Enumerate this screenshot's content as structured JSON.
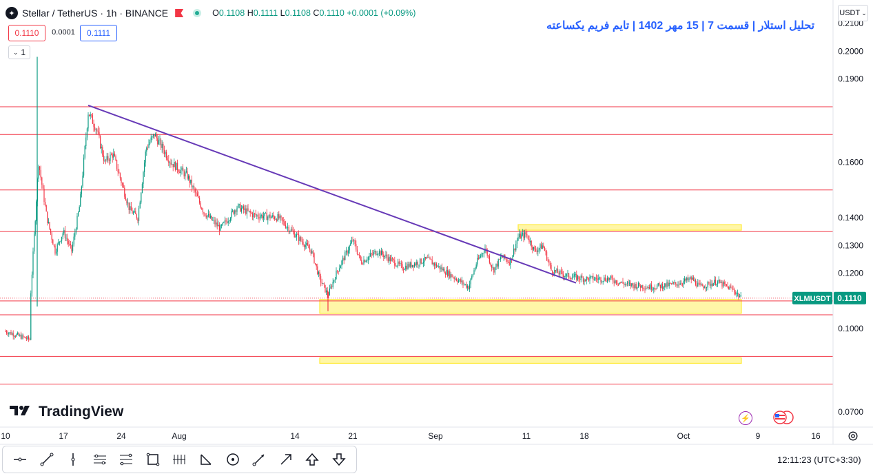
{
  "header": {
    "symbol_icon": "stellar-logo-icon",
    "title": "Stellar / TetherUS · 1h · BINANCE",
    "ohlc": {
      "o_label": "O",
      "o": "0.1108",
      "h_label": "H",
      "h": "0.1111",
      "l_label": "L",
      "l": "0.1108",
      "c_label": "C",
      "c": "0.1110",
      "change": "+0.0001 (+0.09%)"
    },
    "bid": "0.1110",
    "spread": "0.0001",
    "ask": "0.1111",
    "collapse_label": "1",
    "annotation_title": "تحلیل استلار | قسمت 7 | 15 مهر 1402 | تایم فریم یکساعته",
    "currency": "USDT"
  },
  "chart_data": {
    "type": "candlestick",
    "symbol": "XLMUSDT",
    "last_price": "0.1110",
    "ylim": [
      0.0645,
      0.2185
    ],
    "y_ticks": [
      "0.2100",
      "0.2000",
      "0.1900",
      "0.1600",
      "0.1400",
      "0.1300",
      "0.1200",
      "0.1000",
      "0.0700"
    ],
    "x_ticks": [
      "10",
      "17",
      "24",
      "Aug",
      "14",
      "21",
      "Sep",
      "11",
      "18",
      "Oct",
      "9",
      "16"
    ],
    "horizontal_levels": [
      {
        "value": 0.18,
        "label": "0.1800"
      },
      {
        "value": 0.17,
        "label": "0.1700"
      },
      {
        "value": 0.15,
        "label": "0.1500"
      },
      {
        "value": 0.135,
        "label": "0.1350"
      },
      {
        "value": 0.11,
        "label": "0.1100"
      },
      {
        "value": 0.105,
        "label": "0.1050"
      },
      {
        "value": 0.09,
        "label": "0.0900"
      },
      {
        "value": 0.08,
        "label": "0.0800"
      }
    ],
    "zones": [
      {
        "from": 0.1355,
        "to": 0.1375,
        "start": "Sep 10",
        "end": "Oct 7"
      },
      {
        "from": 0.1055,
        "to": 0.1105,
        "start": "Aug 17",
        "end": "Oct 7"
      },
      {
        "from": 0.0875,
        "to": 0.0895,
        "start": "Aug 17",
        "end": "Oct 7"
      }
    ],
    "trendline": {
      "start": {
        "date": "Jul 20",
        "value": 0.1805
      },
      "end": {
        "date": "Sep 17",
        "value": 0.1165
      }
    },
    "colors": {
      "up": "#089981",
      "down": "#f23645",
      "level": "#f23645",
      "zone": "#ffeb3b",
      "trend": "#673ab7",
      "accent": "#2962ff"
    },
    "price_path": [
      [
        "Jul 10",
        0.099
      ],
      [
        "Jul 13",
        0.096
      ],
      [
        "Jul 13",
        0.11
      ],
      [
        "Jul 14",
        0.16
      ],
      [
        "Jul 15",
        0.14
      ],
      [
        "Jul 16",
        0.128
      ],
      [
        "Jul 17",
        0.135
      ],
      [
        "Jul 18",
        0.128
      ],
      [
        "Jul 19",
        0.145
      ],
      [
        "Jul 20",
        0.178
      ],
      [
        "Jul 21",
        0.172
      ],
      [
        "Jul 22",
        0.16
      ],
      [
        "Jul 23",
        0.163
      ],
      [
        "Jul 25",
        0.143
      ],
      [
        "Jul 26",
        0.14
      ],
      [
        "Jul 27",
        0.165
      ],
      [
        "Jul 28",
        0.17
      ],
      [
        "Jul 30",
        0.16
      ],
      [
        "Aug 1",
        0.155
      ],
      [
        "Aug 3",
        0.142
      ],
      [
        "Aug 5",
        0.136
      ],
      [
        "Aug 7",
        0.144
      ],
      [
        "Aug 9",
        0.141
      ],
      [
        "Aug 12",
        0.14
      ],
      [
        "Aug 14",
        0.134
      ],
      [
        "Aug 16",
        0.128
      ],
      [
        "Aug 17",
        0.118
      ],
      [
        "Aug 18",
        0.112
      ],
      [
        "Aug 19",
        0.12
      ],
      [
        "Aug 20",
        0.126
      ],
      [
        "Aug 21",
        0.132
      ],
      [
        "Aug 22",
        0.124
      ],
      [
        "Aug 24",
        0.128
      ],
      [
        "Aug 27",
        0.122
      ],
      [
        "Aug 30",
        0.125
      ],
      [
        "Sep 2",
        0.119
      ],
      [
        "Sep 4",
        0.115
      ],
      [
        "Sep 5",
        0.124
      ],
      [
        "Sep 6",
        0.129
      ],
      [
        "Sep 7",
        0.121
      ],
      [
        "Sep 8",
        0.126
      ],
      [
        "Sep 9",
        0.124
      ],
      [
        "Sep 10",
        0.133
      ],
      [
        "Sep 11",
        0.134
      ],
      [
        "Sep 12",
        0.128
      ],
      [
        "Sep 13",
        0.13
      ],
      [
        "Sep 14",
        0.121
      ],
      [
        "Sep 16",
        0.119
      ],
      [
        "Sep 18",
        0.118
      ],
      [
        "Sep 21",
        0.118
      ],
      [
        "Sep 23",
        0.116
      ],
      [
        "Sep 26",
        0.115
      ],
      [
        "Sep 29",
        0.116
      ],
      [
        "Oct 1",
        0.118
      ],
      [
        "Oct 2",
        0.115
      ],
      [
        "Oct 4",
        0.117
      ],
      [
        "Oct 6",
        0.114
      ],
      [
        "Oct 7",
        0.111
      ]
    ]
  },
  "logo_text": "TradingView",
  "toolbar_icons": [
    "horizontal-ray-icon",
    "trend-line-icon",
    "vertical-line-icon",
    "parallel-channel-icon",
    "fib-retracement-icon",
    "rectangle-icon",
    "gann-fan-icon",
    "abcd-pattern-icon",
    "ellipse-icon",
    "brush-icon",
    "arrow-icon",
    "arrow-up-icon",
    "arrow-down-icon"
  ],
  "footer": {
    "time": "12:11:23",
    "timezone": "(UTC+3:30)"
  }
}
